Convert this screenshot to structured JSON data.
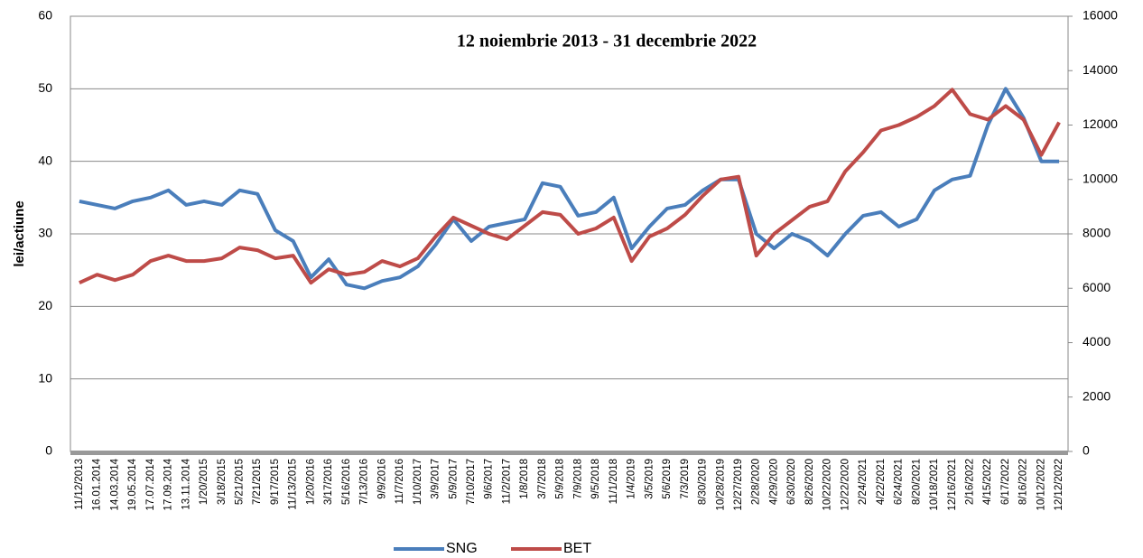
{
  "chart_data": {
    "type": "line",
    "title": "12 noiembrie 2013 - 31 decembrie 2022",
    "y_label": "lei/actiune",
    "categories": [
      "11/12/2013",
      "16.01.2014",
      "14.03.2014",
      "19.05.2014",
      "17.07.2014",
      "17.09.2014",
      "13.11.2014",
      "1/20/2015",
      "3/18/2015",
      "5/21/2015",
      "7/21/2015",
      "9/17/2015",
      "11/13/2015",
      "1/20/2016",
      "3/17/2016",
      "5/16/2016",
      "7/13/2016",
      "9/9/2016",
      "11/7/2016",
      "1/10/2017",
      "3/9/2017",
      "5/9/2017",
      "7/10/2017",
      "9/6/2017",
      "11/2/2017",
      "1/8/2018",
      "3/7/2018",
      "5/9/2018",
      "7/9/2018",
      "9/5/2018",
      "11/1/2018",
      "1/4/2019",
      "3/5/2019",
      "5/6/2019",
      "7/3/2019",
      "8/30/2019",
      "10/28/2019",
      "12/27/2019",
      "2/28/2020",
      "4/29/2020",
      "6/30/2020",
      "8/26/2020",
      "10/22/2020",
      "12/22/2020",
      "2/24/2021",
      "4/22/2021",
      "6/24/2021",
      "8/20/2021",
      "10/18/2021",
      "12/16/2021",
      "2/16/2022",
      "4/15/2022",
      "6/17/2022",
      "8/16/2022",
      "10/12/2022",
      "12/12/2022"
    ],
    "series": [
      {
        "name": "SNG",
        "color": "#4a7ebb",
        "values": [
          34.5,
          34,
          33.5,
          34.5,
          35,
          36,
          34,
          34.5,
          34,
          36,
          35.5,
          30.5,
          29,
          24,
          26.5,
          23,
          22.5,
          23.5,
          24,
          25.5,
          28.5,
          32,
          29,
          31,
          31.5,
          32,
          37,
          36.5,
          32.5,
          33,
          35,
          28,
          31,
          33.5,
          34,
          36,
          37.5,
          37.5,
          30,
          28,
          30,
          29,
          27,
          30,
          32.5,
          33,
          31,
          32,
          36,
          37.5,
          38,
          45,
          50,
          46,
          40,
          40
        ]
      },
      {
        "name": "BET",
        "color": "#be4b48",
        "axis": "y2",
        "values": [
          6200,
          6500,
          6300,
          6500,
          7000,
          7200,
          7000,
          7000,
          7100,
          7500,
          7400,
          7100,
          7200,
          6200,
          6700,
          6500,
          6600,
          7000,
          6800,
          7100,
          7900,
          8600,
          8300,
          8000,
          7800,
          8300,
          8800,
          8700,
          8000,
          8200,
          8600,
          7000,
          7900,
          8200,
          8700,
          9400,
          10000,
          10100,
          7200,
          8000,
          8500,
          9000,
          9200,
          10300,
          11000,
          11800,
          12000,
          12300,
          12700,
          13300,
          12400,
          12200,
          12700,
          12200,
          10900,
          12100
        ]
      }
    ],
    "ylim": [
      0,
      60
    ],
    "yticks": [
      0,
      10,
      20,
      30,
      40,
      50,
      60
    ],
    "y2lim": [
      0,
      16000
    ],
    "y2ticks": [
      0,
      2000,
      4000,
      6000,
      8000,
      10000,
      12000,
      14000,
      16000
    ],
    "grid": true,
    "legend": "bottom"
  }
}
